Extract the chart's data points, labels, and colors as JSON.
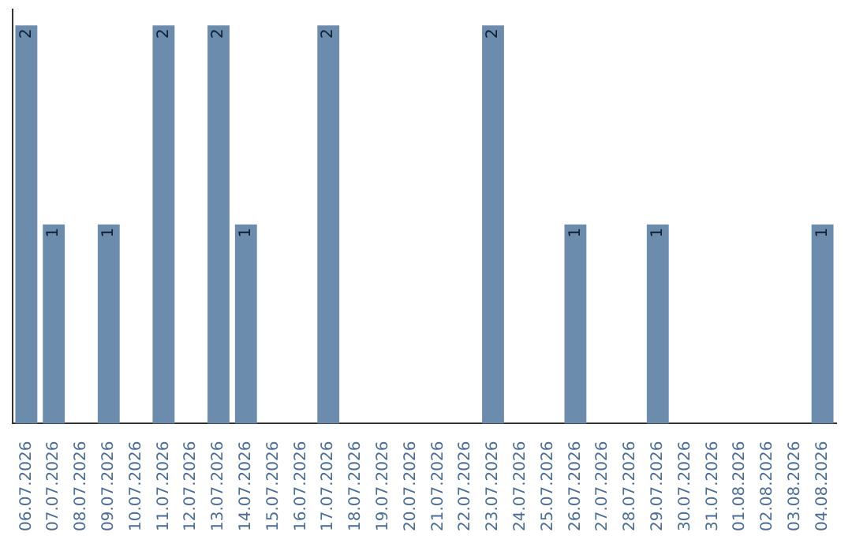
{
  "chart_data": {
    "type": "bar",
    "categories": [
      "06.07.2026",
      "07.07.2026",
      "08.07.2026",
      "09.07.2026",
      "10.07.2026",
      "11.07.2026",
      "12.07.2026",
      "13.07.2026",
      "14.07.2026",
      "15.07.2026",
      "16.07.2026",
      "17.07.2026",
      "18.07.2026",
      "19.07.2026",
      "20.07.2026",
      "21.07.2026",
      "22.07.2026",
      "23.07.2026",
      "24.07.2026",
      "25.07.2026",
      "26.07.2026",
      "27.07.2026",
      "28.07.2026",
      "29.07.2026",
      "30.07.2026",
      "31.07.2026",
      "01.08.2026",
      "02.08.2026",
      "03.08.2026",
      "04.08.2026"
    ],
    "values": [
      2,
      1,
      0,
      1,
      0,
      2,
      0,
      2,
      1,
      0,
      0,
      2,
      0,
      0,
      0,
      0,
      0,
      2,
      0,
      0,
      1,
      0,
      0,
      1,
      0,
      0,
      0,
      0,
      0,
      1
    ],
    "value_labels": [
      "2",
      "1",
      null,
      "1",
      null,
      "2",
      null,
      "2",
      "1",
      null,
      null,
      "2",
      null,
      null,
      null,
      null,
      null,
      "2",
      null,
      null,
      "1",
      null,
      null,
      "1",
      null,
      null,
      null,
      null,
      null,
      "1"
    ],
    "color": "#6b8cad",
    "grid": false,
    "legend": false,
    "tick_labels": "x"
  }
}
